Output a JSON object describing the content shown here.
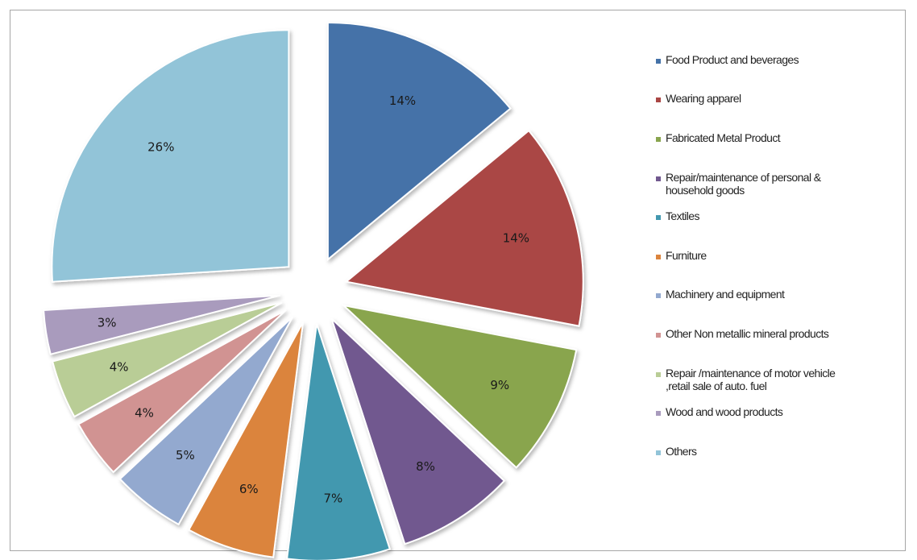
{
  "chart_data": {
    "type": "pie",
    "exploded": true,
    "legend_position": "right",
    "slices": [
      {
        "name": "Food Product and beverages",
        "value": 14,
        "label": "14%",
        "color": "#4472a8"
      },
      {
        "name": "Wearing apparel",
        "value": 14,
        "label": "14%",
        "color": "#aa4644"
      },
      {
        "name": "Fabricated Metal Product",
        "value": 9,
        "label": "9%",
        "color": "#89a54e"
      },
      {
        "name": "Repair/maintenance of personal & household goods",
        "value": 8,
        "label": "8%",
        "color": "#71588f"
      },
      {
        "name": "Textiles",
        "value": 7,
        "label": "7%",
        "color": "#4298af"
      },
      {
        "name": "Furniture",
        "value": 6,
        "label": "6%",
        "color": "#db843d"
      },
      {
        "name": "Machinery and equipment",
        "value": 5,
        "label": "5%",
        "color": "#93a9cf"
      },
      {
        "name": "Other Non metallic mineral products",
        "value": 4,
        "label": "4%",
        "color": "#d19392"
      },
      {
        "name": "Repair /maintenance of motor vehicle ,retail sale of auto. fuel",
        "value": 4,
        "label": "4%",
        "color": "#b9cd96"
      },
      {
        "name": "Wood and wood products",
        "value": 3,
        "label": "3%",
        "color": "#a99bbd"
      },
      {
        "name": "Others",
        "value": 26,
        "label": "26%",
        "color": "#92c4d8"
      }
    ]
  },
  "legend": {
    "items": [
      {
        "lines": [
          "Food Product and beverages"
        ],
        "color": "#4472a8"
      },
      {
        "lines": [
          "Wearing apparel"
        ],
        "color": "#aa4644"
      },
      {
        "lines": [
          "Fabricated Metal Product"
        ],
        "color": "#89a54e"
      },
      {
        "lines": [
          "Repair/maintenance of personal &",
          "household goods"
        ],
        "color": "#71588f"
      },
      {
        "lines": [
          "Textiles"
        ],
        "color": "#4298af"
      },
      {
        "lines": [
          "Furniture"
        ],
        "color": "#db843d"
      },
      {
        "lines": [
          "Machinery and equipment"
        ],
        "color": "#93a9cf"
      },
      {
        "lines": [
          "Other Non metallic mineral products"
        ],
        "color": "#d19392"
      },
      {
        "lines": [
          "Repair /maintenance of motor vehicle",
          ",retail sale of auto. fuel"
        ],
        "color": "#b9cd96"
      },
      {
        "lines": [
          "Wood and wood products"
        ],
        "color": "#a99bbd"
      },
      {
        "lines": [
          "Others"
        ],
        "color": "#92c4d8"
      }
    ]
  }
}
